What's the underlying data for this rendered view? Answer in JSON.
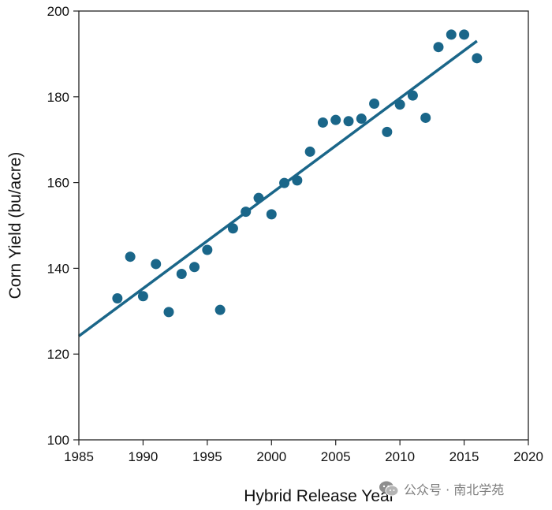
{
  "chart_data": {
    "type": "scatter",
    "title": "",
    "xlabel": "Hybrid Release Year",
    "ylabel": "Corn Yield (bu/acre)",
    "xlim": [
      1985,
      2020
    ],
    "ylim": [
      100,
      200
    ],
    "xticks": [
      1985,
      1990,
      1995,
      2000,
      2005,
      2010,
      2015,
      2020
    ],
    "yticks": [
      100,
      120,
      140,
      160,
      180,
      200
    ],
    "grid": false,
    "legend": "none",
    "point_color": "#1a6689",
    "line_color": "#1a6689",
    "points": [
      {
        "x": 1988,
        "y": 133
      },
      {
        "x": 1989,
        "y": 142.7
      },
      {
        "x": 1990,
        "y": 133.5
      },
      {
        "x": 1991,
        "y": 141
      },
      {
        "x": 1992,
        "y": 129.8
      },
      {
        "x": 1993,
        "y": 138.7
      },
      {
        "x": 1994,
        "y": 140.3
      },
      {
        "x": 1995,
        "y": 144.3
      },
      {
        "x": 1996,
        "y": 130.3
      },
      {
        "x": 1997,
        "y": 149.3
      },
      {
        "x": 1998,
        "y": 153.2
      },
      {
        "x": 1999,
        "y": 156.4
      },
      {
        "x": 2000,
        "y": 152.6
      },
      {
        "x": 2001,
        "y": 159.9
      },
      {
        "x": 2002,
        "y": 160.5
      },
      {
        "x": 2003,
        "y": 167.2
      },
      {
        "x": 2004,
        "y": 174
      },
      {
        "x": 2005,
        "y": 174.6
      },
      {
        "x": 2006,
        "y": 174.3
      },
      {
        "x": 2007,
        "y": 174.9
      },
      {
        "x": 2008,
        "y": 178.4
      },
      {
        "x": 2009,
        "y": 171.8
      },
      {
        "x": 2010,
        "y": 178.2
      },
      {
        "x": 2011,
        "y": 180.3
      },
      {
        "x": 2012,
        "y": 175.1
      },
      {
        "x": 2013,
        "y": 191.6
      },
      {
        "x": 2014,
        "y": 194.5
      },
      {
        "x": 2015,
        "y": 194.5
      },
      {
        "x": 2016,
        "y": 189
      }
    ],
    "trendline": {
      "x": [
        1985,
        2016
      ],
      "y": [
        124.2,
        193
      ]
    }
  },
  "watermark": {
    "text": "公众号 · 南北学苑"
  }
}
